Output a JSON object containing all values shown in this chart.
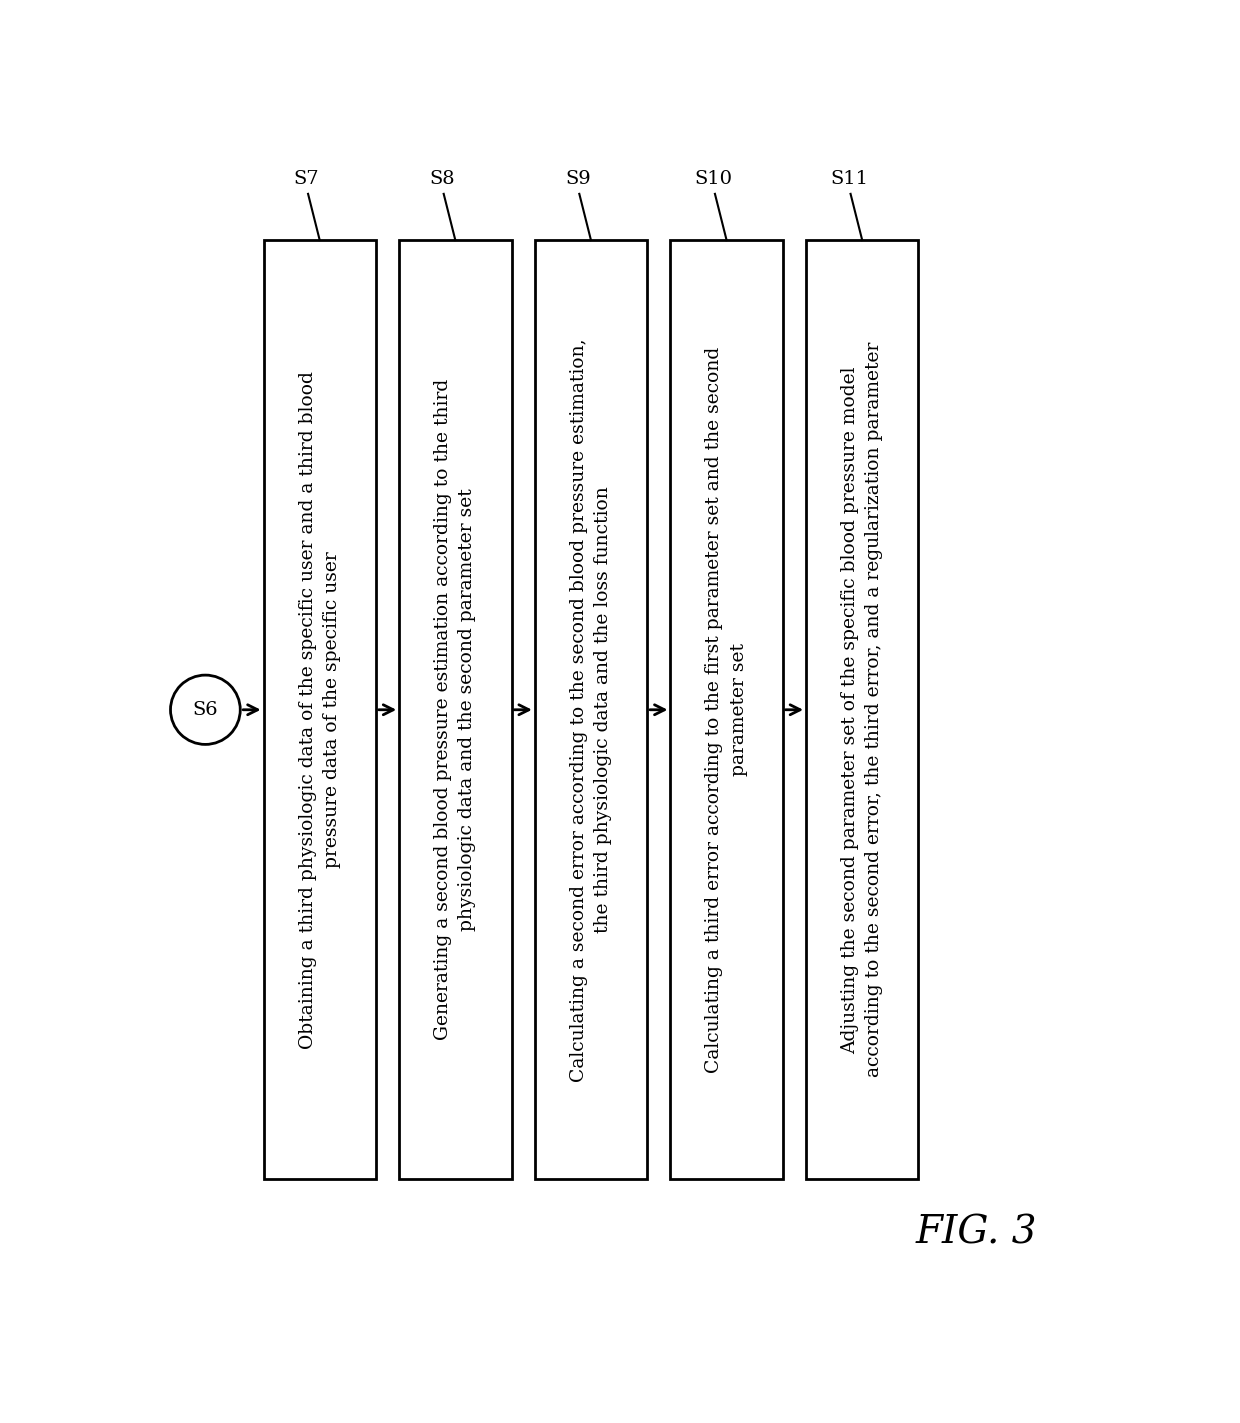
{
  "title": "FIG. 3",
  "background_color": "#ffffff",
  "circle_label": "S6",
  "boxes": [
    {
      "label": "S7",
      "text": "Obtaining a third physiologic data of the specific user and a third blood\npressure data of the specific user"
    },
    {
      "label": "S8",
      "text": "Generating a second blood pressure estimation according to the third\nphysiologic data and the second parameter set"
    },
    {
      "label": "S9",
      "text": "Calculating a second error according to the second blood pressure estimation,\nthe third physiologic data and the loss function"
    },
    {
      "label": "S10",
      "text": "Calculating a third error according to the first parameter set and the second\nparameter set"
    },
    {
      "label": "S11",
      "text": "Adjusting the second parameter set of the specific blood pressure model\naccording to the second error, the third error, and a regularization parameter"
    }
  ],
  "box_color": "#ffffff",
  "box_edge_color": "#000000",
  "text_color": "#000000",
  "arrow_color": "#000000",
  "font_size": 13.5,
  "label_font_size": 14,
  "title_font_size": 28
}
